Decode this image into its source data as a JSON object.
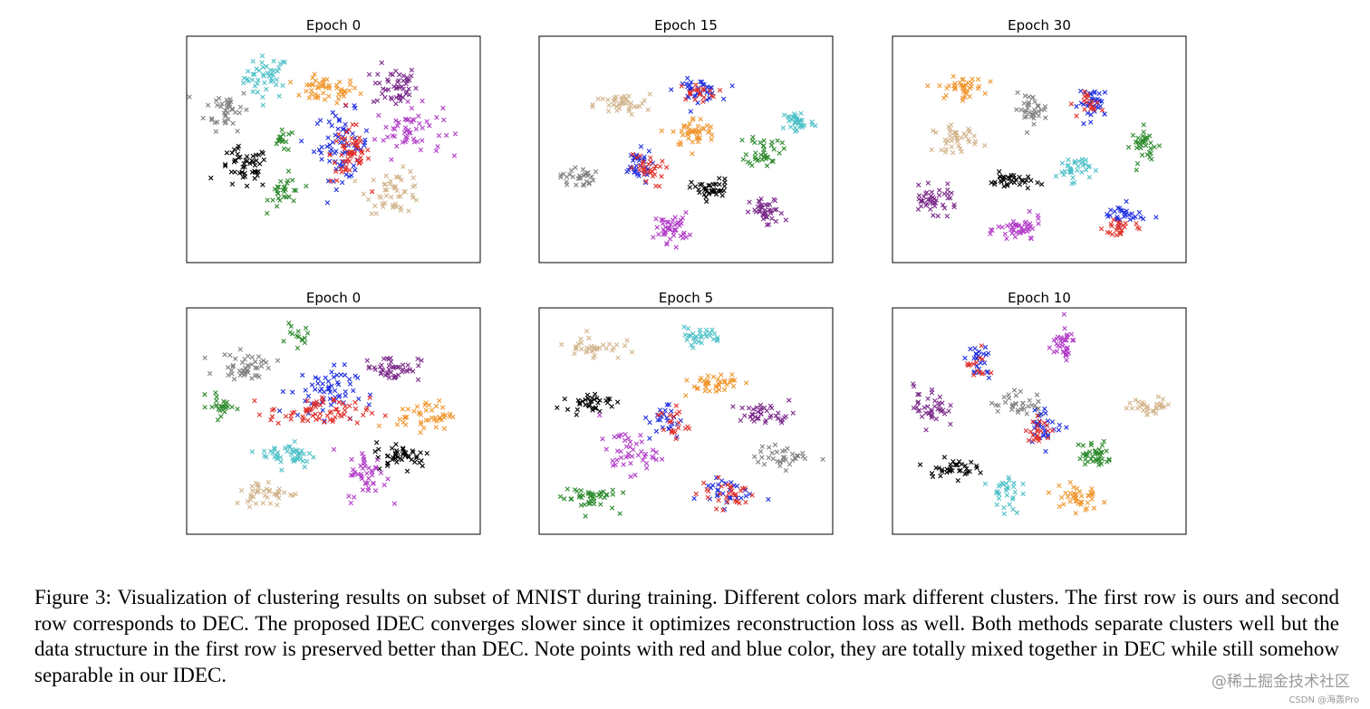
{
  "figure": {
    "caption": "Figure 3: Visualization of clustering results on subset of MNIST during training. Different colors mark different clusters. The first row is ours and second row corresponds to DEC. The proposed IDEC converges slower since it optimizes reconstruction loss as well. Both methods separate clusters well but the data structure in the first row is preserved better than DEC. Note points with red and blue color, they are totally mixed together in DEC while still somehow separable in our IDEC."
  },
  "watermark": {
    "main": "@稀土掘金技术社区",
    "small": "CSDN @海轰Pro"
  },
  "colors": {
    "orange": "#f0962e",
    "cyan": "#4cc0c8",
    "purple": "#7b2a8a",
    "gray": "#808080",
    "magenta": "#b23cc8",
    "green": "#2d8a2d",
    "black": "#000000",
    "blue": "#1f2fe0",
    "red": "#e0302a",
    "tan": "#d2b48c"
  },
  "chart_data": [
    {
      "type": "scatter",
      "title": "Epoch 0",
      "xlabel": "",
      "ylabel": "",
      "axes_ticks": false,
      "grid": false,
      "xlim": [
        0,
        100
      ],
      "ylim": [
        0,
        100
      ],
      "clusters": [
        {
          "color": "cyan",
          "cx": 26,
          "cy": 84,
          "sx": 4,
          "sy": 5,
          "n": 45
        },
        {
          "color": "orange",
          "cx": 47,
          "cy": 78,
          "sx": 6,
          "sy": 3,
          "n": 50
        },
        {
          "color": "purple",
          "cx": 72,
          "cy": 80,
          "sx": 4,
          "sy": 5,
          "n": 50
        },
        {
          "color": "gray",
          "cx": 12,
          "cy": 69,
          "sx": 4,
          "sy": 5,
          "n": 40
        },
        {
          "color": "magenta",
          "cx": 77,
          "cy": 59,
          "sx": 6,
          "sy": 6,
          "n": 55
        },
        {
          "color": "blue",
          "cx": 53,
          "cy": 52,
          "sx": 5,
          "sy": 8,
          "n": 70
        },
        {
          "color": "red",
          "cx": 56,
          "cy": 48,
          "sx": 3.5,
          "sy": 7,
          "n": 60
        },
        {
          "color": "green",
          "cx": 32,
          "cy": 54,
          "sx": 2,
          "sy": 2.5,
          "n": 15
        },
        {
          "color": "black",
          "cx": 18,
          "cy": 41,
          "sx": 4.5,
          "sy": 5,
          "n": 50
        },
        {
          "color": "green",
          "cx": 33,
          "cy": 30,
          "sx": 3,
          "sy": 4,
          "n": 30
        },
        {
          "color": "tan",
          "cx": 72,
          "cy": 30,
          "sx": 5,
          "sy": 5,
          "n": 50
        }
      ]
    },
    {
      "type": "scatter",
      "title": "Epoch 15",
      "xlabel": "",
      "ylabel": "",
      "axes_ticks": false,
      "grid": false,
      "xlim": [
        0,
        100
      ],
      "ylim": [
        0,
        100
      ],
      "clusters": [
        {
          "color": "blue",
          "cx": 54,
          "cy": 78,
          "sx": 4,
          "sy": 2.5,
          "n": 35
        },
        {
          "color": "red",
          "cx": 54,
          "cy": 77,
          "sx": 3.5,
          "sy": 2,
          "n": 20
        },
        {
          "color": "tan",
          "cx": 27,
          "cy": 71,
          "sx": 5,
          "sy": 2.5,
          "n": 40
        },
        {
          "color": "cyan",
          "cx": 90,
          "cy": 63,
          "sx": 3,
          "sy": 3,
          "n": 35
        },
        {
          "color": "orange",
          "cx": 53,
          "cy": 58,
          "sx": 4,
          "sy": 3.5,
          "n": 45
        },
        {
          "color": "green",
          "cx": 78,
          "cy": 50,
          "sx": 3,
          "sy": 4,
          "n": 40
        },
        {
          "color": "blue",
          "cx": 32,
          "cy": 42,
          "sx": 3,
          "sy": 4,
          "n": 35
        },
        {
          "color": "red",
          "cx": 36,
          "cy": 40,
          "sx": 3,
          "sy": 4,
          "n": 30
        },
        {
          "color": "gray",
          "cx": 11,
          "cy": 37,
          "sx": 3,
          "sy": 2.5,
          "n": 30
        },
        {
          "color": "black",
          "cx": 59,
          "cy": 31,
          "sx": 3.5,
          "sy": 2.5,
          "n": 40
        },
        {
          "color": "purple",
          "cx": 79,
          "cy": 20,
          "sx": 3,
          "sy": 3.5,
          "n": 40
        },
        {
          "color": "magenta",
          "cx": 45,
          "cy": 13,
          "sx": 3,
          "sy": 3.5,
          "n": 45
        }
      ]
    },
    {
      "type": "scatter",
      "title": "Epoch 30",
      "xlabel": "",
      "ylabel": "",
      "axes_ticks": false,
      "grid": false,
      "xlim": [
        0,
        100
      ],
      "ylim": [
        0,
        100
      ],
      "clusters": [
        {
          "color": "orange",
          "cx": 22,
          "cy": 79,
          "sx": 4,
          "sy": 2.5,
          "n": 40
        },
        {
          "color": "gray",
          "cx": 47,
          "cy": 69,
          "sx": 3,
          "sy": 3.5,
          "n": 35
        },
        {
          "color": "blue",
          "cx": 70,
          "cy": 72,
          "sx": 3,
          "sy": 3.5,
          "n": 35
        },
        {
          "color": "red",
          "cx": 69,
          "cy": 71,
          "sx": 2,
          "sy": 3,
          "n": 18
        },
        {
          "color": "tan",
          "cx": 20,
          "cy": 55,
          "sx": 4,
          "sy": 3,
          "n": 40
        },
        {
          "color": "green",
          "cx": 88,
          "cy": 52,
          "sx": 2.5,
          "sy": 4,
          "n": 35
        },
        {
          "color": "cyan",
          "cx": 62,
          "cy": 41,
          "sx": 3,
          "sy": 3,
          "n": 35
        },
        {
          "color": "black",
          "cx": 40,
          "cy": 35,
          "sx": 4,
          "sy": 2,
          "n": 35
        },
        {
          "color": "purple",
          "cx": 12,
          "cy": 26,
          "sx": 4.5,
          "sy": 3,
          "n": 45
        },
        {
          "color": "magenta",
          "cx": 43,
          "cy": 12,
          "sx": 4,
          "sy": 3,
          "n": 45
        },
        {
          "color": "blue",
          "cx": 80,
          "cy": 19,
          "sx": 4,
          "sy": 2.5,
          "n": 30
        },
        {
          "color": "red",
          "cx": 79,
          "cy": 13,
          "sx": 3,
          "sy": 2.5,
          "n": 25
        }
      ]
    },
    {
      "type": "scatter",
      "title": "Epoch 0",
      "xlabel": "",
      "ylabel": "",
      "axes_ticks": false,
      "grid": false,
      "xlim": [
        0,
        100
      ],
      "ylim": [
        0,
        100
      ],
      "clusters": [
        {
          "color": "green",
          "cx": 37,
          "cy": 90,
          "sx": 2,
          "sy": 2.5,
          "n": 15
        },
        {
          "color": "gray",
          "cx": 19,
          "cy": 76,
          "sx": 5,
          "sy": 3,
          "n": 45
        },
        {
          "color": "purple",
          "cx": 71,
          "cy": 75,
          "sx": 5,
          "sy": 3,
          "n": 45
        },
        {
          "color": "blue",
          "cx": 46,
          "cy": 64,
          "sx": 6,
          "sy": 6,
          "n": 60
        },
        {
          "color": "red",
          "cx": 45,
          "cy": 54,
          "sx": 9,
          "sy": 3.5,
          "n": 70
        },
        {
          "color": "green",
          "cx": 10,
          "cy": 57,
          "sx": 2.5,
          "sy": 3,
          "n": 25
        },
        {
          "color": "orange",
          "cx": 83,
          "cy": 53,
          "sx": 5,
          "sy": 3.5,
          "n": 45
        },
        {
          "color": "cyan",
          "cx": 34,
          "cy": 34,
          "sx": 5,
          "sy": 3,
          "n": 45
        },
        {
          "color": "black",
          "cx": 75,
          "cy": 34,
          "sx": 5,
          "sy": 3,
          "n": 45
        },
        {
          "color": "magenta",
          "cx": 62,
          "cy": 24,
          "sx": 3.5,
          "sy": 6,
          "n": 45
        },
        {
          "color": "tan",
          "cx": 26,
          "cy": 16,
          "sx": 6,
          "sy": 3,
          "n": 40
        }
      ]
    },
    {
      "type": "scatter",
      "title": "Epoch 5",
      "xlabel": "",
      "ylabel": "",
      "axes_ticks": false,
      "grid": false,
      "xlim": [
        0,
        100
      ],
      "ylim": [
        0,
        100
      ],
      "clusters": [
        {
          "color": "tan",
          "cx": 17,
          "cy": 85,
          "sx": 5,
          "sy": 3,
          "n": 35
        },
        {
          "color": "cyan",
          "cx": 55,
          "cy": 90,
          "sx": 4,
          "sy": 2,
          "n": 30
        },
        {
          "color": "orange",
          "cx": 59,
          "cy": 68,
          "sx": 6,
          "sy": 2.5,
          "n": 40
        },
        {
          "color": "black",
          "cx": 15,
          "cy": 59,
          "sx": 4,
          "sy": 2,
          "n": 35
        },
        {
          "color": "purple",
          "cx": 79,
          "cy": 53,
          "sx": 5,
          "sy": 2.5,
          "n": 40
        },
        {
          "color": "blue",
          "cx": 43,
          "cy": 50,
          "sx": 3,
          "sy": 5,
          "n": 25
        },
        {
          "color": "red",
          "cx": 45,
          "cy": 49,
          "sx": 3,
          "sy": 4,
          "n": 20
        },
        {
          "color": "magenta",
          "cx": 29,
          "cy": 35,
          "sx": 5,
          "sy": 5,
          "n": 45
        },
        {
          "color": "gray",
          "cx": 85,
          "cy": 33,
          "sx": 5,
          "sy": 2.5,
          "n": 35
        },
        {
          "color": "green",
          "cx": 15,
          "cy": 14,
          "sx": 5,
          "sy": 3,
          "n": 45
        },
        {
          "color": "blue",
          "cx": 63,
          "cy": 17,
          "sx": 5,
          "sy": 4,
          "n": 30
        },
        {
          "color": "red",
          "cx": 65,
          "cy": 16,
          "sx": 5,
          "sy": 3.5,
          "n": 30
        }
      ]
    },
    {
      "type": "scatter",
      "title": "Epoch 10",
      "xlabel": "",
      "ylabel": "",
      "axes_ticks": false,
      "grid": false,
      "xlim": [
        0,
        100
      ],
      "ylim": [
        0,
        100
      ],
      "clusters": [
        {
          "color": "magenta",
          "cx": 58,
          "cy": 86,
          "sx": 2.5,
          "sy": 4,
          "n": 35
        },
        {
          "color": "blue",
          "cx": 28,
          "cy": 77,
          "sx": 2.5,
          "sy": 4,
          "n": 25
        },
        {
          "color": "red",
          "cx": 28,
          "cy": 76,
          "sx": 2,
          "sy": 4,
          "n": 15
        },
        {
          "color": "purple",
          "cx": 11,
          "cy": 57,
          "sx": 3,
          "sy": 5,
          "n": 40
        },
        {
          "color": "gray",
          "cx": 42,
          "cy": 58,
          "sx": 5,
          "sy": 3,
          "n": 35
        },
        {
          "color": "tan",
          "cx": 90,
          "cy": 57,
          "sx": 4,
          "sy": 2,
          "n": 35
        },
        {
          "color": "blue",
          "cx": 52,
          "cy": 48,
          "sx": 3,
          "sy": 4,
          "n": 30
        },
        {
          "color": "red",
          "cx": 51,
          "cy": 46,
          "sx": 3,
          "sy": 3,
          "n": 22
        },
        {
          "color": "green",
          "cx": 70,
          "cy": 34,
          "sx": 3,
          "sy": 3.5,
          "n": 40
        },
        {
          "color": "black",
          "cx": 18,
          "cy": 28,
          "sx": 4.5,
          "sy": 2,
          "n": 35
        },
        {
          "color": "cyan",
          "cx": 38,
          "cy": 16,
          "sx": 2.5,
          "sy": 5,
          "n": 30
        },
        {
          "color": "orange",
          "cx": 63,
          "cy": 14,
          "sx": 4,
          "sy": 4,
          "n": 40
        }
      ]
    }
  ]
}
